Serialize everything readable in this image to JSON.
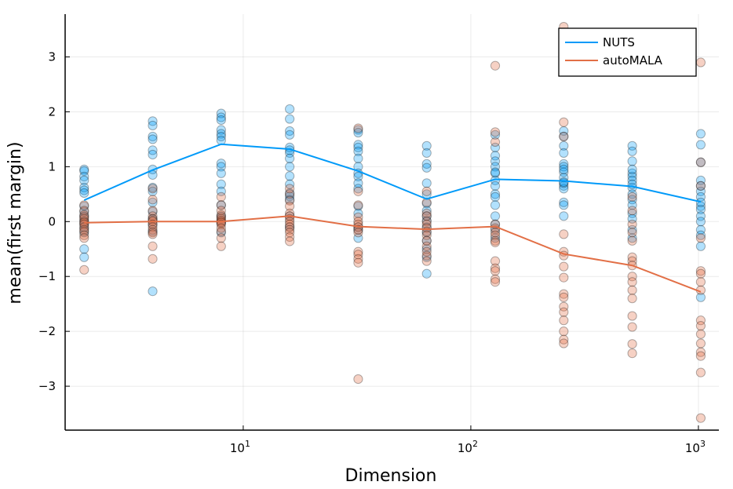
{
  "chart_data": {
    "type": "scatter",
    "title": "",
    "xlabel": "Dimension",
    "ylabel": "mean(first margin)",
    "x_scale": "log10",
    "xlim": [
      1.65,
      1230
    ],
    "ylim": [
      -3.8,
      3.78
    ],
    "x_ticks": [
      {
        "value": 10,
        "base": "10",
        "exp": "1"
      },
      {
        "value": 100,
        "base": "10",
        "exp": "2"
      },
      {
        "value": 1000,
        "base": "10",
        "exp": "3"
      }
    ],
    "y_ticks": [
      {
        "value": 3,
        "label": "3"
      },
      {
        "value": 2,
        "label": "2"
      },
      {
        "value": 1,
        "label": "1"
      },
      {
        "value": 0,
        "label": "0"
      },
      {
        "value": -1,
        "label": "−1"
      },
      {
        "value": -2,
        "label": "−2"
      },
      {
        "value": -3,
        "label": "−3"
      }
    ],
    "grid": true,
    "legend_position": "top-right",
    "x": [
      2,
      4,
      8,
      16,
      32,
      64,
      128,
      256,
      512,
      1024
    ],
    "series": [
      {
        "name": "NUTS",
        "color": "#009af9",
        "mean": [
          0.39,
          0.94,
          1.41,
          1.32,
          0.92,
          0.41,
          0.77,
          0.74,
          0.64,
          0.36
        ],
        "points": [
          [
            0.95,
            0.92,
            0.82,
            0.75,
            0.62,
            0.57,
            0.52,
            0.28,
            0.18,
            0.1,
            0.02,
            -0.05,
            -0.12,
            -0.2,
            -0.5,
            -0.65
          ],
          [
            1.83,
            1.75,
            1.55,
            1.5,
            1.3,
            1.22,
            0.95,
            0.85,
            0.62,
            0.55,
            0.35,
            0.18,
            0.05,
            -0.05,
            -0.18,
            -1.27
          ],
          [
            1.97,
            1.9,
            1.85,
            1.67,
            1.6,
            1.55,
            1.48,
            1.06,
            1.0,
            0.88,
            0.68,
            0.55,
            0.3,
            0.1,
            -0.02,
            -0.2
          ],
          [
            2.05,
            1.87,
            1.65,
            1.58,
            1.35,
            1.3,
            1.25,
            1.15,
            1.0,
            0.83,
            0.68,
            0.52,
            0.46,
            0.4,
            0.1,
            -0.1
          ],
          [
            1.67,
            1.62,
            1.4,
            1.35,
            1.28,
            1.15,
            1.0,
            0.88,
            0.82,
            0.7,
            0.6,
            0.28,
            0.15,
            -0.1,
            -0.15,
            -0.3
          ],
          [
            1.38,
            1.25,
            1.05,
            0.98,
            0.7,
            0.5,
            0.33,
            0.2,
            0.02,
            -0.1,
            -0.2,
            -0.35,
            -0.5,
            -0.65,
            -0.95,
            0.1
          ],
          [
            1.58,
            1.35,
            1.2,
            1.1,
            1.0,
            0.88,
            0.75,
            0.65,
            0.5,
            0.45,
            0.3,
            0.1,
            -0.05,
            -0.15,
            -0.3,
            0.9
          ],
          [
            1.65,
            1.55,
            1.38,
            1.25,
            1.05,
            1.0,
            0.9,
            0.8,
            0.65,
            0.6,
            0.35,
            0.3,
            0.1,
            0.7,
            0.95,
            0.72
          ],
          [
            1.38,
            1.28,
            1.1,
            0.88,
            0.82,
            0.75,
            0.62,
            0.5,
            0.4,
            0.3,
            0.15,
            0.05,
            -0.15,
            -0.3,
            0.68,
            0.95
          ],
          [
            1.6,
            1.4,
            1.08,
            0.75,
            0.65,
            0.55,
            0.45,
            0.28,
            0.22,
            0.1,
            0.0,
            -0.15,
            -0.25,
            -0.45,
            -1.38,
            0.35
          ]
        ]
      },
      {
        "name": "autoMALA",
        "color": "#e26f46",
        "mean": [
          -0.02,
          0.0,
          0.0,
          0.1,
          -0.09,
          -0.14,
          -0.09,
          -0.59,
          -0.8,
          -1.28
        ],
        "points": [
          [
            0.3,
            0.2,
            0.12,
            0.08,
            0.05,
            0.0,
            -0.02,
            -0.05,
            -0.1,
            -0.15,
            -0.18,
            -0.25,
            -0.3,
            -0.88
          ],
          [
            0.6,
            0.4,
            0.2,
            0.1,
            0.05,
            0.02,
            0.0,
            -0.05,
            -0.1,
            -0.15,
            -0.2,
            -0.23,
            -0.45,
            -0.68
          ],
          [
            0.45,
            0.3,
            0.2,
            0.12,
            0.08,
            0.05,
            0.02,
            0.0,
            -0.02,
            -0.05,
            -0.12,
            -0.18,
            -0.3,
            -0.45
          ],
          [
            0.6,
            0.5,
            0.38,
            0.28,
            0.15,
            0.1,
            0.05,
            0.0,
            -0.05,
            -0.1,
            -0.15,
            -0.2,
            -0.28,
            -0.36
          ],
          [
            1.7,
            0.55,
            0.3,
            0.08,
            0.0,
            -0.05,
            -0.1,
            -0.15,
            -0.2,
            -0.55,
            -0.6,
            -0.68,
            -0.75,
            -2.87
          ],
          [
            0.55,
            0.35,
            0.15,
            0.1,
            0.0,
            -0.05,
            -0.12,
            -0.18,
            -0.25,
            -0.35,
            -0.45,
            -0.55,
            -0.62,
            -0.72
          ],
          [
            2.84,
            1.63,
            1.45,
            -0.05,
            -0.12,
            -0.2,
            -0.25,
            -0.35,
            -0.38,
            -0.72,
            -0.85,
            -0.9,
            -1.05,
            -1.1
          ],
          [
            3.55,
            1.81,
            1.55,
            -0.23,
            -0.55,
            -0.62,
            -0.82,
            -1.02,
            -1.32,
            -1.38,
            -1.55,
            -1.65,
            -1.8,
            -2.0,
            -2.15,
            -2.22
          ],
          [
            0.45,
            0.2,
            -0.05,
            -0.2,
            -0.35,
            -0.65,
            -0.72,
            -0.8,
            -1.0,
            -1.1,
            -1.25,
            -1.4,
            -1.72,
            -1.92,
            -2.23,
            -2.4
          ],
          [
            2.9,
            1.08,
            0.65,
            -0.3,
            -0.9,
            -0.95,
            -1.1,
            -1.25,
            -1.8,
            -1.9,
            -2.05,
            -2.22,
            -2.38,
            -2.45,
            -2.75,
            -3.58
          ]
        ]
      }
    ]
  }
}
